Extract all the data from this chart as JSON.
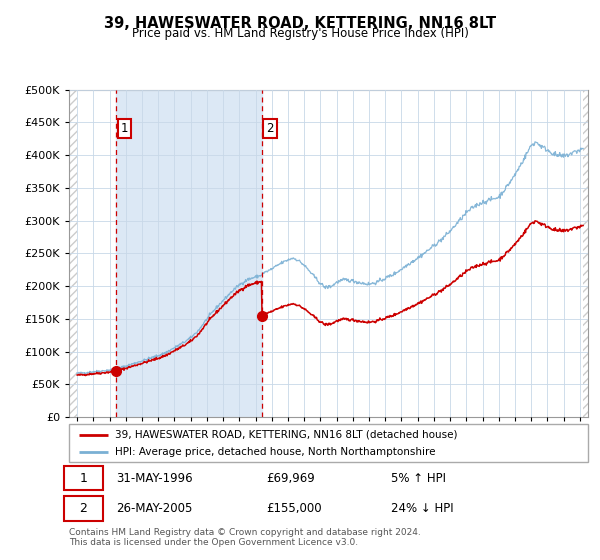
{
  "title": "39, HAWESWATER ROAD, KETTERING, NN16 8LT",
  "subtitle": "Price paid vs. HM Land Registry's House Price Index (HPI)",
  "footer": "Contains HM Land Registry data © Crown copyright and database right 2024.\nThis data is licensed under the Open Government Licence v3.0.",
  "legend_line1": "39, HAWESWATER ROAD, KETTERING, NN16 8LT (detached house)",
  "legend_line2": "HPI: Average price, detached house, North Northamptonshire",
  "transaction1_date": "31-MAY-1996",
  "transaction1_price": "£69,969",
  "transaction1_hpi": "5% ↑ HPI",
  "transaction1_year": 1996.42,
  "transaction1_value": 69969,
  "transaction2_date": "26-MAY-2005",
  "transaction2_price": "£155,000",
  "transaction2_hpi": "24% ↓ HPI",
  "transaction2_year": 2005.4,
  "transaction2_value": 155000,
  "red_color": "#cc0000",
  "blue_color": "#7ab0d4",
  "shaded_bg": "#dce8f5",
  "hatch_color": "#cccccc",
  "grid_color": "#c8d8e8",
  "ylim": [
    0,
    500000
  ],
  "yticks": [
    0,
    50000,
    100000,
    150000,
    200000,
    250000,
    300000,
    350000,
    400000,
    450000,
    500000
  ],
  "xlim_start": 1993.5,
  "xlim_end": 2025.5,
  "data_start": 1994.0,
  "data_end": 2025.2
}
